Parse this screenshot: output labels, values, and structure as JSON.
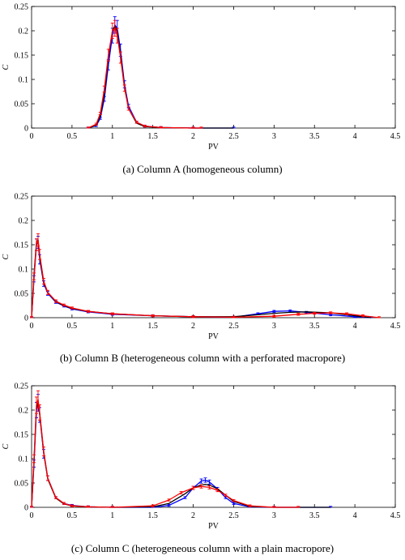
{
  "figure": {
    "captions": [
      "(a) Column A (homogeneous column)",
      "(b) Column B (heterogeneous column with a perforated macropore)",
      "(c) Column C (heterogeneous column with a plain macropore)"
    ]
  },
  "chart_data": [
    {
      "type": "line",
      "title": "",
      "xlabel": "PV",
      "ylabel": "C",
      "xlim": [
        0,
        4.5
      ],
      "ylim": [
        0,
        0.25
      ],
      "xticks": [
        "0",
        "0.5",
        "1",
        "1.5",
        "2",
        "2.5",
        "3",
        "3.5",
        "4",
        "4.5"
      ],
      "yticks": [
        "0",
        "0.05",
        "0.1",
        "0.15",
        "0.2",
        "0.25"
      ],
      "grid": false,
      "series": [
        {
          "color": "#0000ff",
          "style": "line-with-error-bars",
          "x": [
            0.7,
            0.8,
            0.85,
            0.9,
            0.95,
            1.0,
            1.03,
            1.06,
            1.1,
            1.15,
            1.2,
            1.3,
            1.4,
            1.6,
            2.0,
            2.5
          ],
          "y": [
            0.0,
            0.005,
            0.02,
            0.06,
            0.13,
            0.19,
            0.212,
            0.205,
            0.16,
            0.09,
            0.045,
            0.012,
            0.004,
            0.001,
            0.0,
            0.0
          ]
        },
        {
          "color": "#000000",
          "style": "line",
          "x": [
            0.7,
            0.8,
            0.85,
            0.9,
            0.95,
            1.0,
            1.03,
            1.06,
            1.1,
            1.15,
            1.2,
            1.3,
            1.4,
            1.6,
            2.0,
            2.5
          ],
          "y": [
            0.0,
            0.006,
            0.025,
            0.07,
            0.145,
            0.2,
            0.21,
            0.198,
            0.15,
            0.085,
            0.04,
            0.01,
            0.003,
            0.001,
            0.0,
            0.0
          ]
        },
        {
          "color": "#ff0000",
          "style": "line-with-error-bars",
          "x": [
            0.7,
            0.8,
            0.85,
            0.9,
            0.95,
            1.0,
            1.03,
            1.06,
            1.1,
            1.15,
            1.2,
            1.3,
            1.4,
            1.6,
            2.0,
            2.1
          ],
          "y": [
            0.0,
            0.008,
            0.03,
            0.08,
            0.15,
            0.2,
            0.205,
            0.19,
            0.145,
            0.082,
            0.04,
            0.012,
            0.004,
            0.001,
            0.0,
            0.0
          ]
        }
      ]
    },
    {
      "type": "line",
      "title": "",
      "xlabel": "PV",
      "ylabel": "C",
      "xlim": [
        0,
        4.5
      ],
      "ylim": [
        0,
        0.25
      ],
      "xticks": [
        "0",
        "0.5",
        "1",
        "1.5",
        "2",
        "2.5",
        "3",
        "3.5",
        "4",
        "4.5"
      ],
      "yticks": [
        "0",
        "0.05",
        "0.1",
        "0.15",
        "0.2",
        "0.25"
      ],
      "grid": false,
      "series": [
        {
          "color": "#0000ff",
          "style": "line-with-error-bars",
          "x": [
            0.0,
            0.03,
            0.06,
            0.08,
            0.1,
            0.15,
            0.2,
            0.3,
            0.4,
            0.5,
            0.7,
            1.0,
            1.5,
            2.0,
            2.5,
            2.8,
            3.0,
            3.2,
            3.4,
            3.7,
            4.0,
            4.2
          ],
          "y": [
            0.0,
            0.08,
            0.15,
            0.155,
            0.12,
            0.07,
            0.05,
            0.032,
            0.024,
            0.018,
            0.012,
            0.007,
            0.004,
            0.002,
            0.001,
            0.008,
            0.013,
            0.014,
            0.011,
            0.006,
            0.002,
            0.0
          ]
        },
        {
          "color": "#000000",
          "style": "line",
          "x": [
            0.0,
            0.03,
            0.06,
            0.08,
            0.1,
            0.15,
            0.2,
            0.3,
            0.4,
            0.5,
            0.7,
            1.0,
            1.5,
            2.0,
            2.5,
            2.8,
            3.0,
            3.2,
            3.4,
            3.7,
            4.0,
            4.2
          ],
          "y": [
            0.0,
            0.09,
            0.155,
            0.16,
            0.125,
            0.072,
            0.052,
            0.033,
            0.025,
            0.019,
            0.013,
            0.008,
            0.004,
            0.002,
            0.002,
            0.006,
            0.009,
            0.011,
            0.012,
            0.01,
            0.004,
            0.0
          ]
        },
        {
          "color": "#ff0000",
          "style": "line-with-error-bars",
          "x": [
            0.0,
            0.03,
            0.06,
            0.08,
            0.1,
            0.15,
            0.2,
            0.3,
            0.4,
            0.5,
            0.7,
            1.0,
            1.5,
            2.0,
            2.5,
            3.0,
            3.3,
            3.5,
            3.7,
            3.9,
            4.1,
            4.3
          ],
          "y": [
            0.0,
            0.085,
            0.15,
            0.16,
            0.13,
            0.075,
            0.052,
            0.034,
            0.026,
            0.02,
            0.013,
            0.008,
            0.004,
            0.002,
            0.001,
            0.003,
            0.007,
            0.009,
            0.01,
            0.008,
            0.004,
            0.0
          ]
        }
      ]
    },
    {
      "type": "line",
      "title": "",
      "xlabel": "PV",
      "ylabel": "C",
      "xlim": [
        0,
        4.5
      ],
      "ylim": [
        0,
        0.25
      ],
      "xticks": [
        "0",
        "0.5",
        "1",
        "1.5",
        "2",
        "2.5",
        "3",
        "3.5",
        "4",
        "4.5"
      ],
      "yticks": [
        "0",
        "0.05",
        "0.1",
        "0.15",
        "0.2",
        "0.25"
      ],
      "grid": false,
      "series": [
        {
          "color": "#0000ff",
          "style": "line-with-error-bars",
          "x": [
            0.0,
            0.03,
            0.06,
            0.08,
            0.1,
            0.15,
            0.2,
            0.3,
            0.4,
            0.5,
            0.7,
            1.0,
            1.5,
            1.7,
            1.9,
            2.0,
            2.1,
            2.15,
            2.2,
            2.3,
            2.4,
            2.5,
            2.7,
            3.0,
            3.7
          ],
          "y": [
            0.0,
            0.09,
            0.2,
            0.215,
            0.19,
            0.11,
            0.06,
            0.02,
            0.008,
            0.004,
            0.001,
            0.0,
            0.0,
            0.004,
            0.02,
            0.04,
            0.054,
            0.056,
            0.052,
            0.038,
            0.02,
            0.008,
            0.001,
            0.0,
            0.0
          ]
        },
        {
          "color": "#000000",
          "style": "line",
          "x": [
            0.0,
            0.03,
            0.06,
            0.08,
            0.1,
            0.15,
            0.2,
            0.3,
            0.4,
            0.5,
            0.7,
            1.0,
            1.5,
            1.7,
            1.9,
            2.0,
            2.1,
            2.15,
            2.2,
            2.3,
            2.4,
            2.5,
            2.7,
            3.0,
            3.7
          ],
          "y": [
            0.0,
            0.095,
            0.205,
            0.218,
            0.192,
            0.112,
            0.058,
            0.019,
            0.007,
            0.003,
            0.001,
            0.0,
            0.001,
            0.008,
            0.028,
            0.04,
            0.046,
            0.047,
            0.046,
            0.038,
            0.025,
            0.012,
            0.002,
            0.0,
            0.0
          ]
        },
        {
          "color": "#ff0000",
          "style": "line-with-error-bars",
          "x": [
            0.0,
            0.03,
            0.06,
            0.08,
            0.1,
            0.15,
            0.2,
            0.3,
            0.4,
            0.5,
            0.7,
            1.0,
            1.5,
            1.7,
            1.85,
            2.0,
            2.1,
            2.2,
            2.3,
            2.4,
            2.5,
            2.7,
            3.0,
            3.3
          ],
          "y": [
            0.0,
            0.1,
            0.21,
            0.222,
            0.195,
            0.115,
            0.06,
            0.02,
            0.008,
            0.003,
            0.001,
            0.0,
            0.003,
            0.015,
            0.03,
            0.04,
            0.043,
            0.041,
            0.035,
            0.025,
            0.014,
            0.003,
            0.0,
            0.0
          ]
        }
      ]
    }
  ]
}
